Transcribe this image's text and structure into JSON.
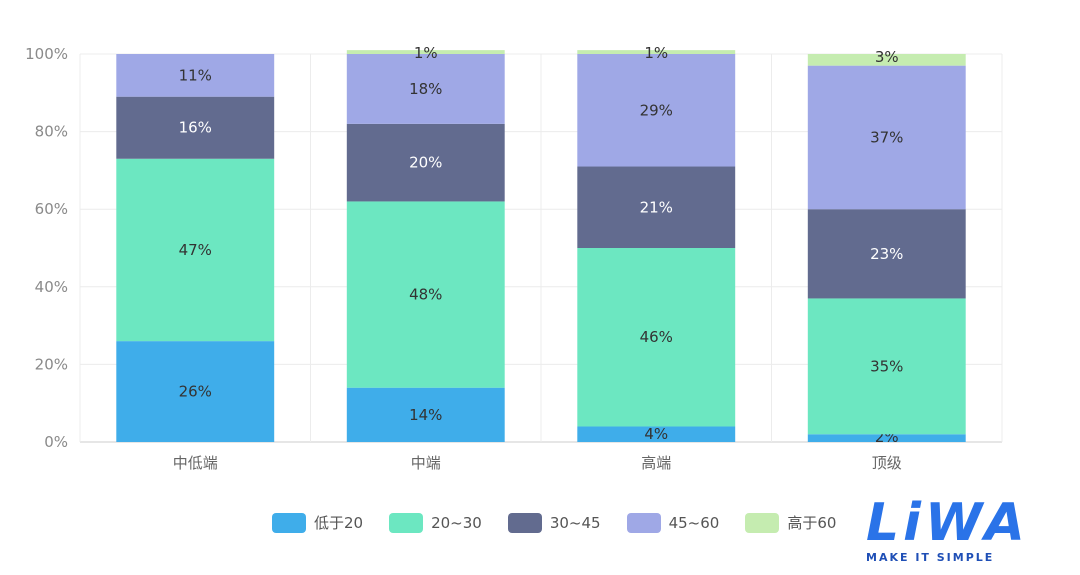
{
  "chart_data": {
    "type": "bar",
    "stacked": true,
    "categories": [
      "中低端",
      "中端",
      "高端",
      "顶级"
    ],
    "y_ticks": [
      "0%",
      "20%",
      "40%",
      "60%",
      "80%",
      "100%"
    ],
    "ylim": [
      0,
      100
    ],
    "series": [
      {
        "name": "低于20",
        "color": "#3fadea",
        "values": [
          26,
          14,
          4,
          2
        ],
        "labels": [
          "26%",
          "14%",
          "4%",
          "2%"
        ]
      },
      {
        "name": "20~30",
        "color": "#6ce7c1",
        "values": [
          47,
          48,
          46,
          35
        ],
        "labels": [
          "47%",
          "48%",
          "46%",
          "35%"
        ]
      },
      {
        "name": "30~45",
        "color": "#626b8f",
        "values": [
          16,
          20,
          21,
          23
        ],
        "labels": [
          "16%",
          "20%",
          "21%",
          "23%"
        ]
      },
      {
        "name": "45~60",
        "color": "#9fa8e6",
        "values": [
          11,
          18,
          29,
          37
        ],
        "labels": [
          "11%",
          "18%",
          "29%",
          "37%"
        ]
      },
      {
        "name": "高于60",
        "color": "#c5ecb0",
        "values": [
          0,
          1,
          1,
          3
        ],
        "labels": [
          "",
          "1%",
          "1%",
          "3%"
        ]
      }
    ],
    "legend_position": "bottom",
    "grid": true
  },
  "logo": {
    "text": "LiWA",
    "tagline": "MAKE IT SIMPLE"
  }
}
